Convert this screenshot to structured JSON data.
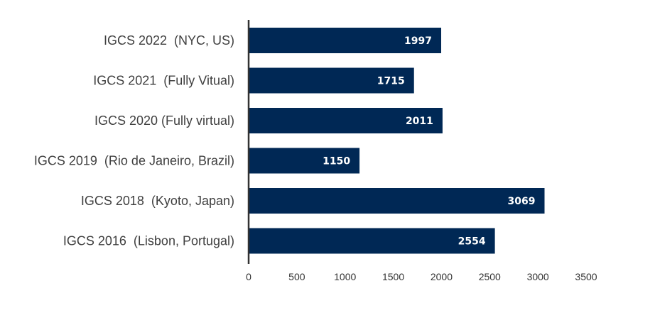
{
  "chart_data": {
    "type": "bar",
    "orientation": "horizontal",
    "title": "",
    "xlabel": "",
    "ylabel": "",
    "categories": [
      "IGCS 2022  (NYC, US)",
      "IGCS 2021  (Fully Vitual)",
      "IGCS 2020 (Fully virtual)",
      "IGCS 2019  (Rio de Janeiro, Brazil)",
      "IGCS 2018  (Kyoto, Japan)",
      "IGCS 2016  (Lisbon, Portugal)"
    ],
    "values": [
      1997,
      1715,
      2011,
      1150,
      3069,
      2554
    ],
    "value_labels": [
      "1997",
      "1715",
      "2011",
      "1150",
      "3069",
      "2554"
    ],
    "xlim": [
      0,
      3500
    ],
    "x_ticks": [
      0,
      500,
      1000,
      1500,
      2000,
      2500,
      3000,
      3500
    ],
    "x_tick_labels": [
      "0",
      "500",
      "1000",
      "1500",
      "2000",
      "2500",
      "3000",
      "3500"
    ],
    "grid": false,
    "legend": "none",
    "colors": {
      "bar": "#002855",
      "axis": "#333333",
      "value_text": "#ffffff",
      "category_text": "#3f3f3f"
    }
  }
}
